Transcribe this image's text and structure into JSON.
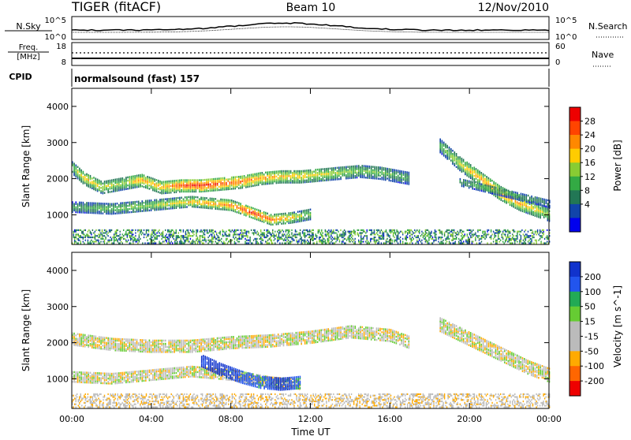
{
  "header": {
    "radar": "TIGER (fitACF)",
    "beam": "Beam 10",
    "date": "12/Nov/2010"
  },
  "strip_panels": {
    "nsky_label": "N.Sky",
    "nsearch_label": "N.Search",
    "freq_label": "Freq.",
    "freq_unit": "[MHz]",
    "nave_label": "Nave",
    "cpid_label": "CPID",
    "cpid_value": "normalsound (fast) 157",
    "left_ticks_top": [
      "10^5",
      "10^0"
    ],
    "right_ticks_top": [
      "10^5",
      "10^0"
    ],
    "left_ticks_freq": [
      "18",
      "8"
    ],
    "right_ticks_nave": [
      "60",
      "0"
    ]
  },
  "colorbars": {
    "power": {
      "title": "Power [dB]",
      "ticks": [
        "28",
        "24",
        "20",
        "16",
        "12",
        "8",
        "4"
      ],
      "colors": [
        "#ee0000",
        "#ff4400",
        "#ff8800",
        "#ffcc00",
        "#88cc33",
        "#33aa44",
        "#227755",
        "#1144aa",
        "#0000ee"
      ]
    },
    "velocity": {
      "title": "Velocity [m s^-1]",
      "ticks": [
        "200",
        "100",
        "50",
        "15",
        "-15",
        "-50",
        "-100",
        "-200"
      ],
      "colors": [
        "#1133cc",
        "#2255ee",
        "#22aa55",
        "#66cc33",
        "#bbbbbb",
        "#bbbbbb",
        "#ffaa00",
        "#ff6600",
        "#ee0000"
      ]
    }
  },
  "chart_data": [
    {
      "type": "heatmap",
      "title": "",
      "xlabel": "",
      "ylabel": "Slant Range [km]",
      "x_ticks": [
        "00:00",
        "04:00",
        "08:00",
        "12:00",
        "16:00",
        "20:00",
        "00:00"
      ],
      "y_ticks": [
        "1000",
        "2000",
        "3000",
        "4000"
      ],
      "xlim": [
        0,
        24
      ],
      "ylim": [
        180,
        4500
      ],
      "colorbar": "Power [dB]",
      "echo_bands": [
        {
          "x": [
            0,
            0.6,
            1.5,
            2.5,
            3.5,
            4.5,
            5.5,
            6.5,
            7.5,
            8.5,
            9.5,
            10.5,
            11.5,
            12.5,
            13.5,
            14.5,
            15.5,
            16.5,
            17.0
          ],
          "y": [
            2300,
            2000,
            1750,
            1850,
            1950,
            1750,
            1800,
            1800,
            1850,
            1900,
            2000,
            2050,
            2050,
            2100,
            2150,
            2200,
            2150,
            2050,
            2000
          ],
          "thickness_km": 350,
          "power_db": [
            14,
            20,
            18,
            16,
            22,
            20,
            26,
            28,
            26,
            24,
            22,
            20,
            20,
            18,
            16,
            14,
            14,
            12,
            10
          ]
        },
        {
          "x": [
            0,
            2,
            4,
            6,
            8,
            9,
            10,
            11,
            12
          ],
          "y": [
            1200,
            1150,
            1250,
            1350,
            1250,
            1050,
            850,
            900,
            1000
          ],
          "thickness_km": 280,
          "power_db": [
            12,
            14,
            16,
            20,
            24,
            28,
            24,
            20,
            14
          ]
        },
        {
          "x": [
            18.5,
            19.5,
            20.5,
            21.5,
            22.5,
            23.5,
            24
          ],
          "y": [
            2900,
            2400,
            2000,
            1600,
            1300,
            1100,
            1000
          ],
          "thickness_km": 380,
          "power_db": [
            12,
            18,
            22,
            24,
            22,
            18,
            16
          ]
        },
        {
          "x": [
            19.5,
            21,
            22.5,
            24
          ],
          "y": [
            1900,
            1700,
            1500,
            1300
          ],
          "thickness_km": 220,
          "power_db": [
            12,
            14,
            12,
            10
          ]
        }
      ]
    },
    {
      "type": "heatmap",
      "title": "",
      "xlabel": "Time UT",
      "ylabel": "Slant Range [km]",
      "x_ticks": [
        "00:00",
        "04:00",
        "08:00",
        "12:00",
        "16:00",
        "20:00",
        "00:00"
      ],
      "y_ticks": [
        "1000",
        "2000",
        "3000",
        "4000"
      ],
      "xlim": [
        0,
        24
      ],
      "ylim": [
        180,
        4500
      ],
      "colorbar": "Velocity [m s^-1]",
      "echo_bands": [
        {
          "x": [
            0,
            2,
            4,
            6,
            8,
            10,
            12,
            14,
            16,
            17
          ],
          "y": [
            2100,
            1950,
            1900,
            1900,
            2000,
            2050,
            2150,
            2300,
            2200,
            2000
          ],
          "thickness_km": 350,
          "velocity": [
            0,
            0,
            0,
            0,
            0,
            0,
            0,
            0,
            0,
            0
          ]
        },
        {
          "x": [
            0,
            2,
            4,
            6,
            8,
            10,
            11.5
          ],
          "y": [
            1050,
            1000,
            1100,
            1200,
            1100,
            900,
            850
          ],
          "thickness_km": 300,
          "velocity": [
            0,
            0,
            0,
            0,
            0,
            0,
            0
          ]
        },
        {
          "x": [
            6.5,
            7.5,
            8.5,
            9.5,
            10.5,
            11.5
          ],
          "y": [
            1500,
            1250,
            1050,
            900,
            850,
            900
          ],
          "thickness_km": 350,
          "velocity": [
            150,
            200,
            120,
            80,
            200,
            60
          ]
        },
        {
          "x": [
            18.5,
            20,
            21.5,
            23,
            24
          ],
          "y": [
            2500,
            2100,
            1700,
            1300,
            1100
          ],
          "thickness_km": 400,
          "velocity": [
            0,
            0,
            0,
            0,
            0
          ]
        }
      ]
    }
  ]
}
